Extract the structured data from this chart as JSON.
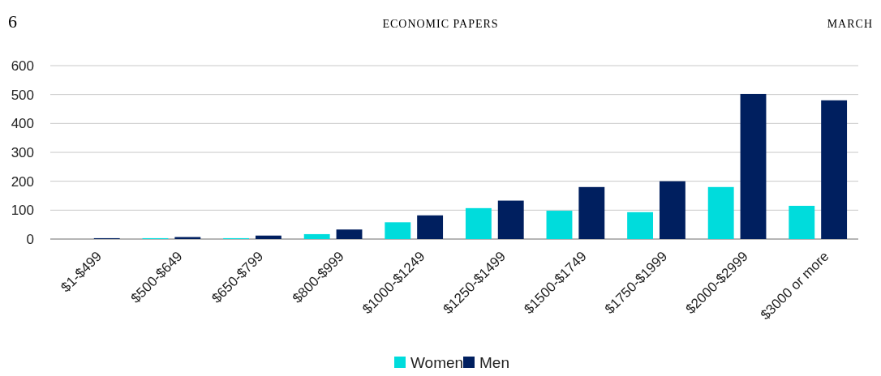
{
  "chart_data": {
    "type": "bar",
    "annotations": [
      "6",
      "ECONOMIC PAPERS",
      "MARCH"
    ],
    "categories": [
      "$1-$499",
      "$500-$649",
      "$650-$799",
      "$800-$999",
      "$1000-$1249",
      "$1250-$1499",
      "$1500-$1749",
      "$1750-$1999",
      "$2000-$2999",
      "$3000 or more"
    ],
    "series": [
      {
        "name": "Women",
        "color": "#00dcdc",
        "values": [
          0,
          3,
          3,
          17,
          58,
          107,
          98,
          93,
          180,
          115
        ]
      },
      {
        "name": "Men",
        "color": "#001f5f",
        "values": [
          3,
          7,
          12,
          33,
          82,
          133,
          180,
          200,
          502,
          480
        ]
      }
    ],
    "ylim": [
      0,
      600
    ],
    "yticks": [
      0,
      100,
      200,
      300,
      400,
      500,
      600
    ],
    "grid": "y",
    "legend": "bottom"
  }
}
